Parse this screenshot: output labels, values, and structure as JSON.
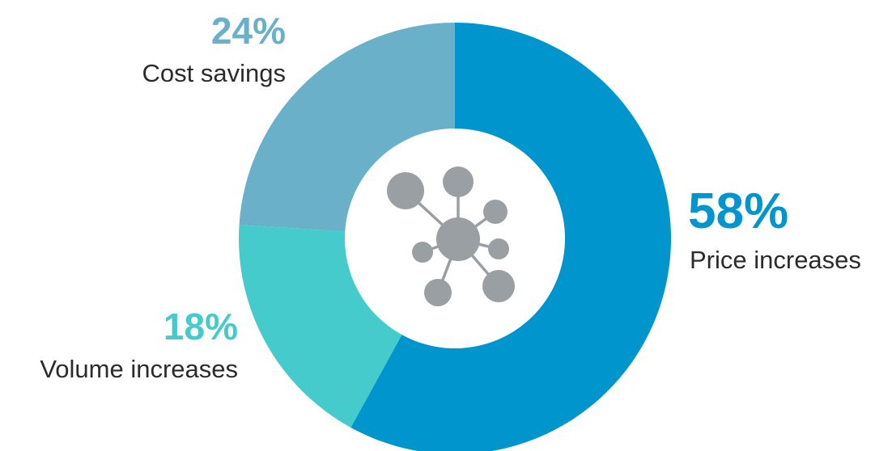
{
  "chart_data": {
    "type": "pie",
    "style": "donut",
    "slices": [
      {
        "label": "Price increases",
        "value": 58,
        "percent_label": "58%",
        "color": "#0095cc"
      },
      {
        "label": "Volume increases",
        "value": 18,
        "percent_label": "18%",
        "color": "#45cbcb"
      },
      {
        "label": "Cost savings",
        "value": 24,
        "percent_label": "24%",
        "color": "#6ab0c9"
      }
    ],
    "center_icon": "network-hub-icon",
    "icon_color": "#9a9fa3"
  }
}
